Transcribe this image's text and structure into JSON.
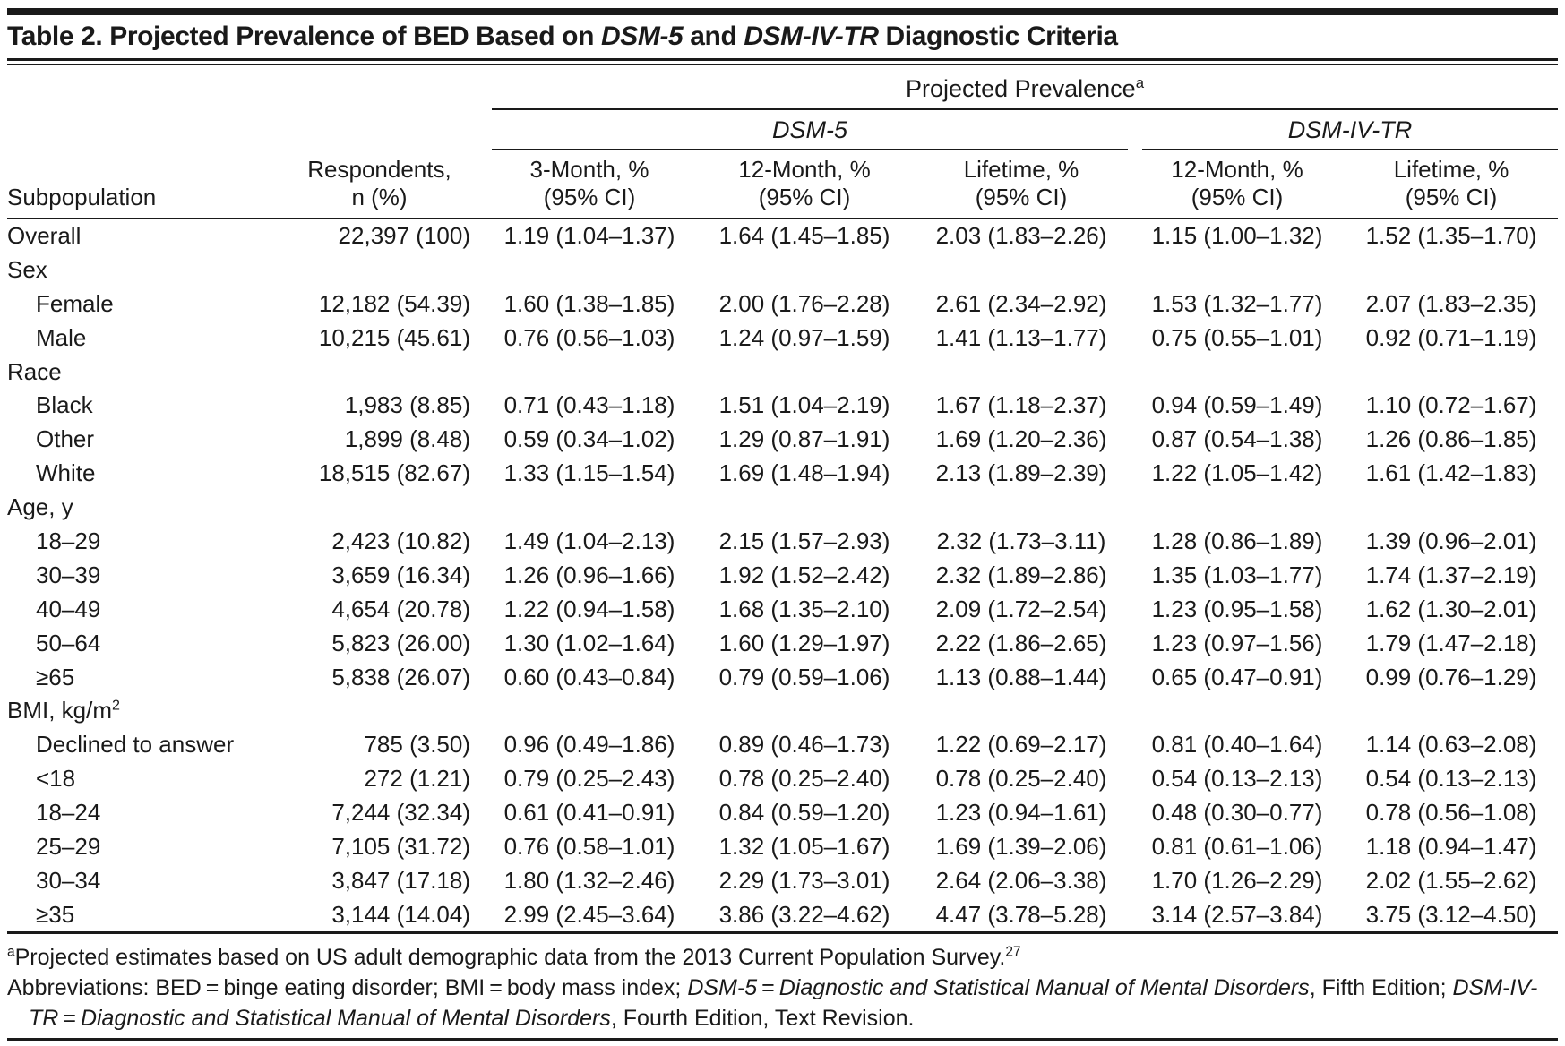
{
  "title": {
    "segments": [
      {
        "t": "Table 2. Projected Prevalence of BED Based on "
      },
      {
        "t": "DSM-5",
        "i": true
      },
      {
        "t": " and "
      },
      {
        "t": "DSM-IV-TR",
        "i": true
      },
      {
        "t": " Diagnostic Criteria"
      }
    ]
  },
  "header": {
    "projected_prevalence": [
      {
        "t": "Projected Prevalence"
      },
      {
        "t": "a",
        "sup": true
      }
    ],
    "dsm5": [
      {
        "t": "DSM-5",
        "i": true
      }
    ],
    "dsm4": [
      {
        "t": "DSM-IV-TR",
        "i": true
      }
    ],
    "columns": {
      "subpopulation": "Subpopulation",
      "respondents": [
        "Respondents,",
        "n (%)"
      ],
      "dsm5_3month": [
        "3-Month, %",
        "(95% CI)"
      ],
      "dsm5_12month": [
        "12-Month, %",
        "(95% CI)"
      ],
      "dsm5_lifetime": [
        "Lifetime, %",
        "(95% CI)"
      ],
      "dsm4_12month": [
        "12-Month, %",
        "(95% CI)"
      ],
      "dsm4_lifetime": [
        "Lifetime, %",
        "(95% CI)"
      ]
    }
  },
  "table": {
    "rows": [
      {
        "label": "Overall",
        "indent": 0,
        "cells": [
          "22,397 (100)",
          "1.19 (1.04–1.37)",
          "1.64 (1.45–1.85)",
          "2.03 (1.83–2.26)",
          "1.15 (1.00–1.32)",
          "1.52 (1.35–1.70)"
        ]
      },
      {
        "label": "Sex",
        "section": true,
        "indent": 0,
        "cells": []
      },
      {
        "label": "Female",
        "indent": 1,
        "cells": [
          "12,182 (54.39)",
          "1.60 (1.38–1.85)",
          "2.00 (1.76–2.28)",
          "2.61 (2.34–2.92)",
          "1.53 (1.32–1.77)",
          "2.07 (1.83–2.35)"
        ]
      },
      {
        "label": "Male",
        "indent": 1,
        "cells": [
          "10,215 (45.61)",
          "0.76 (0.56–1.03)",
          "1.24 (0.97–1.59)",
          "1.41 (1.13–1.77)",
          "0.75 (0.55–1.01)",
          "0.92 (0.71–1.19)"
        ]
      },
      {
        "label": "Race",
        "section": true,
        "indent": 0,
        "cells": []
      },
      {
        "label": "Black",
        "indent": 1,
        "cells": [
          "1,983 (8.85)",
          "0.71 (0.43–1.18)",
          "1.51 (1.04–2.19)",
          "1.67 (1.18–2.37)",
          "0.94 (0.59–1.49)",
          "1.10 (0.72–1.67)"
        ]
      },
      {
        "label": "Other",
        "indent": 1,
        "cells": [
          "1,899 (8.48)",
          "0.59 (0.34–1.02)",
          "1.29 (0.87–1.91)",
          "1.69 (1.20–2.36)",
          "0.87 (0.54–1.38)",
          "1.26 (0.86–1.85)"
        ]
      },
      {
        "label": "White",
        "indent": 1,
        "cells": [
          "18,515 (82.67)",
          "1.33 (1.15–1.54)",
          "1.69 (1.48–1.94)",
          "2.13 (1.89–2.39)",
          "1.22 (1.05–1.42)",
          "1.61 (1.42–1.83)"
        ]
      },
      {
        "label": "Age, y",
        "section": true,
        "indent": 0,
        "cells": []
      },
      {
        "label": "18–29",
        "indent": 1,
        "cells": [
          "2,423 (10.82)",
          "1.49 (1.04–2.13)",
          "2.15 (1.57–2.93)",
          "2.32 (1.73–3.11)",
          "1.28 (0.86–1.89)",
          "1.39 (0.96–2.01)"
        ]
      },
      {
        "label": "30–39",
        "indent": 1,
        "cells": [
          "3,659 (16.34)",
          "1.26 (0.96–1.66)",
          "1.92 (1.52–2.42)",
          "2.32 (1.89–2.86)",
          "1.35 (1.03–1.77)",
          "1.74 (1.37–2.19)"
        ]
      },
      {
        "label": "40–49",
        "indent": 1,
        "cells": [
          "4,654 (20.78)",
          "1.22 (0.94–1.58)",
          "1.68 (1.35–2.10)",
          "2.09 (1.72–2.54)",
          "1.23 (0.95–1.58)",
          "1.62 (1.30–2.01)"
        ]
      },
      {
        "label": "50–64",
        "indent": 1,
        "cells": [
          "5,823 (26.00)",
          "1.30 (1.02–1.64)",
          "1.60 (1.29–1.97)",
          "2.22 (1.86–2.65)",
          "1.23 (0.97–1.56)",
          "1.79 (1.47–2.18)"
        ]
      },
      {
        "label": "≥65",
        "indent": 1,
        "cells": [
          "5,838 (26.07)",
          "0.60 (0.43–0.84)",
          "0.79 (0.59–1.06)",
          "1.13 (0.88–1.44)",
          "0.65 (0.47–0.91)",
          "0.99 (0.76–1.29)"
        ]
      },
      {
        "label": "BMI, kg/m",
        "label_rich": [
          {
            "t": "BMI, kg/m"
          },
          {
            "t": "2",
            "sup": true
          }
        ],
        "section": true,
        "indent": 0,
        "cells": []
      },
      {
        "label": "Declined to answer",
        "indent": 1,
        "cells": [
          "785 (3.50)",
          "0.96 (0.49–1.86)",
          "0.89 (0.46–1.73)",
          "1.22 (0.69–2.17)",
          "0.81 (0.40–1.64)",
          "1.14 (0.63–2.08)"
        ]
      },
      {
        "label": "<18",
        "indent": 1,
        "cells": [
          "272 (1.21)",
          "0.79 (0.25–2.43)",
          "0.78 (0.25–2.40)",
          "0.78 (0.25–2.40)",
          "0.54 (0.13–2.13)",
          "0.54 (0.13–2.13)"
        ]
      },
      {
        "label": "18–24",
        "indent": 1,
        "cells": [
          "7,244 (32.34)",
          "0.61 (0.41–0.91)",
          "0.84 (0.59–1.20)",
          "1.23 (0.94–1.61)",
          "0.48 (0.30–0.77)",
          "0.78 (0.56–1.08)"
        ]
      },
      {
        "label": "25–29",
        "indent": 1,
        "cells": [
          "7,105 (31.72)",
          "0.76 (0.58–1.01)",
          "1.32 (1.05–1.67)",
          "1.69 (1.39–2.06)",
          "0.81 (0.61–1.06)",
          "1.18 (0.94–1.47)"
        ]
      },
      {
        "label": "30–34",
        "indent": 1,
        "cells": [
          "3,847 (17.18)",
          "1.80 (1.32–2.46)",
          "2.29 (1.73–3.01)",
          "2.64 (2.06–3.38)",
          "1.70 (1.26–2.29)",
          "2.02 (1.55–2.62)"
        ]
      },
      {
        "label": "≥35",
        "indent": 1,
        "cells": [
          "3,144 (14.04)",
          "2.99 (2.45–3.64)",
          "3.86 (3.22–4.62)",
          "4.47 (3.78–5.28)",
          "3.14 (2.57–3.84)",
          "3.75 (3.12–4.50)"
        ]
      }
    ]
  },
  "footnotes": {
    "a": [
      {
        "t": "a",
        "sup": true
      },
      {
        "t": "Projected estimates based on US adult demographic data from the 2013 Current Population Survey."
      },
      {
        "t": "27",
        "sup": true
      }
    ],
    "abbreviations": [
      {
        "t": "Abbreviations: BED = binge eating disorder; BMI = body mass index; "
      },
      {
        "t": "DSM-5",
        "i": true
      },
      {
        "t": " = "
      },
      {
        "t": "Diagnostic and Statistical Manual of Mental Disorders",
        "i": true
      },
      {
        "t": ", Fifth Edition; "
      },
      {
        "t": "DSM-IV-TR",
        "i": true
      },
      {
        "t": " = "
      },
      {
        "t": "Diagnostic and Statistical Manual of Mental Disorders",
        "i": true
      },
      {
        "t": ", Fourth Edition, Text Revision."
      }
    ]
  }
}
